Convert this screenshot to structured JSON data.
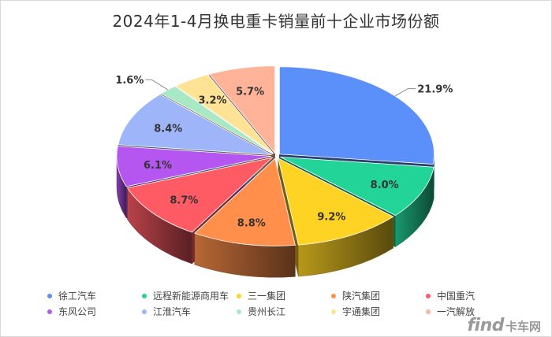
{
  "chart_data": {
    "type": "pie",
    "title": "2024年1-4月换电重卡销量前十企业市场份额",
    "categories": [
      "徐工汽车",
      "远程新能源商用车",
      "三一集团",
      "陕汽集团",
      "中国重汽",
      "东风公司",
      "江淮汽车",
      "贵州长江",
      "宇通集团",
      "一汽解放"
    ],
    "values": [
      21.9,
      8.0,
      9.2,
      8.8,
      8.7,
      6.1,
      8.4,
      1.6,
      3.2,
      5.7
    ],
    "data_labels": [
      "21.9%",
      "8.0%",
      "9.2%",
      "8.8%",
      "8.7%",
      "6.1%",
      "8.4%",
      "1.6%",
      "3.2%",
      "5.7%"
    ],
    "colors": [
      "#5b8ff9",
      "#22d497",
      "#ffd324",
      "#ff8f4a",
      "#ff5b65",
      "#b656f0",
      "#9eb6f9",
      "#a8e8c4",
      "#ffe394",
      "#ffb49a"
    ],
    "legend": "bottom",
    "style": "3d-exploded-pie"
  },
  "watermark": {
    "latin": "find",
    "cn": "卡车网"
  }
}
